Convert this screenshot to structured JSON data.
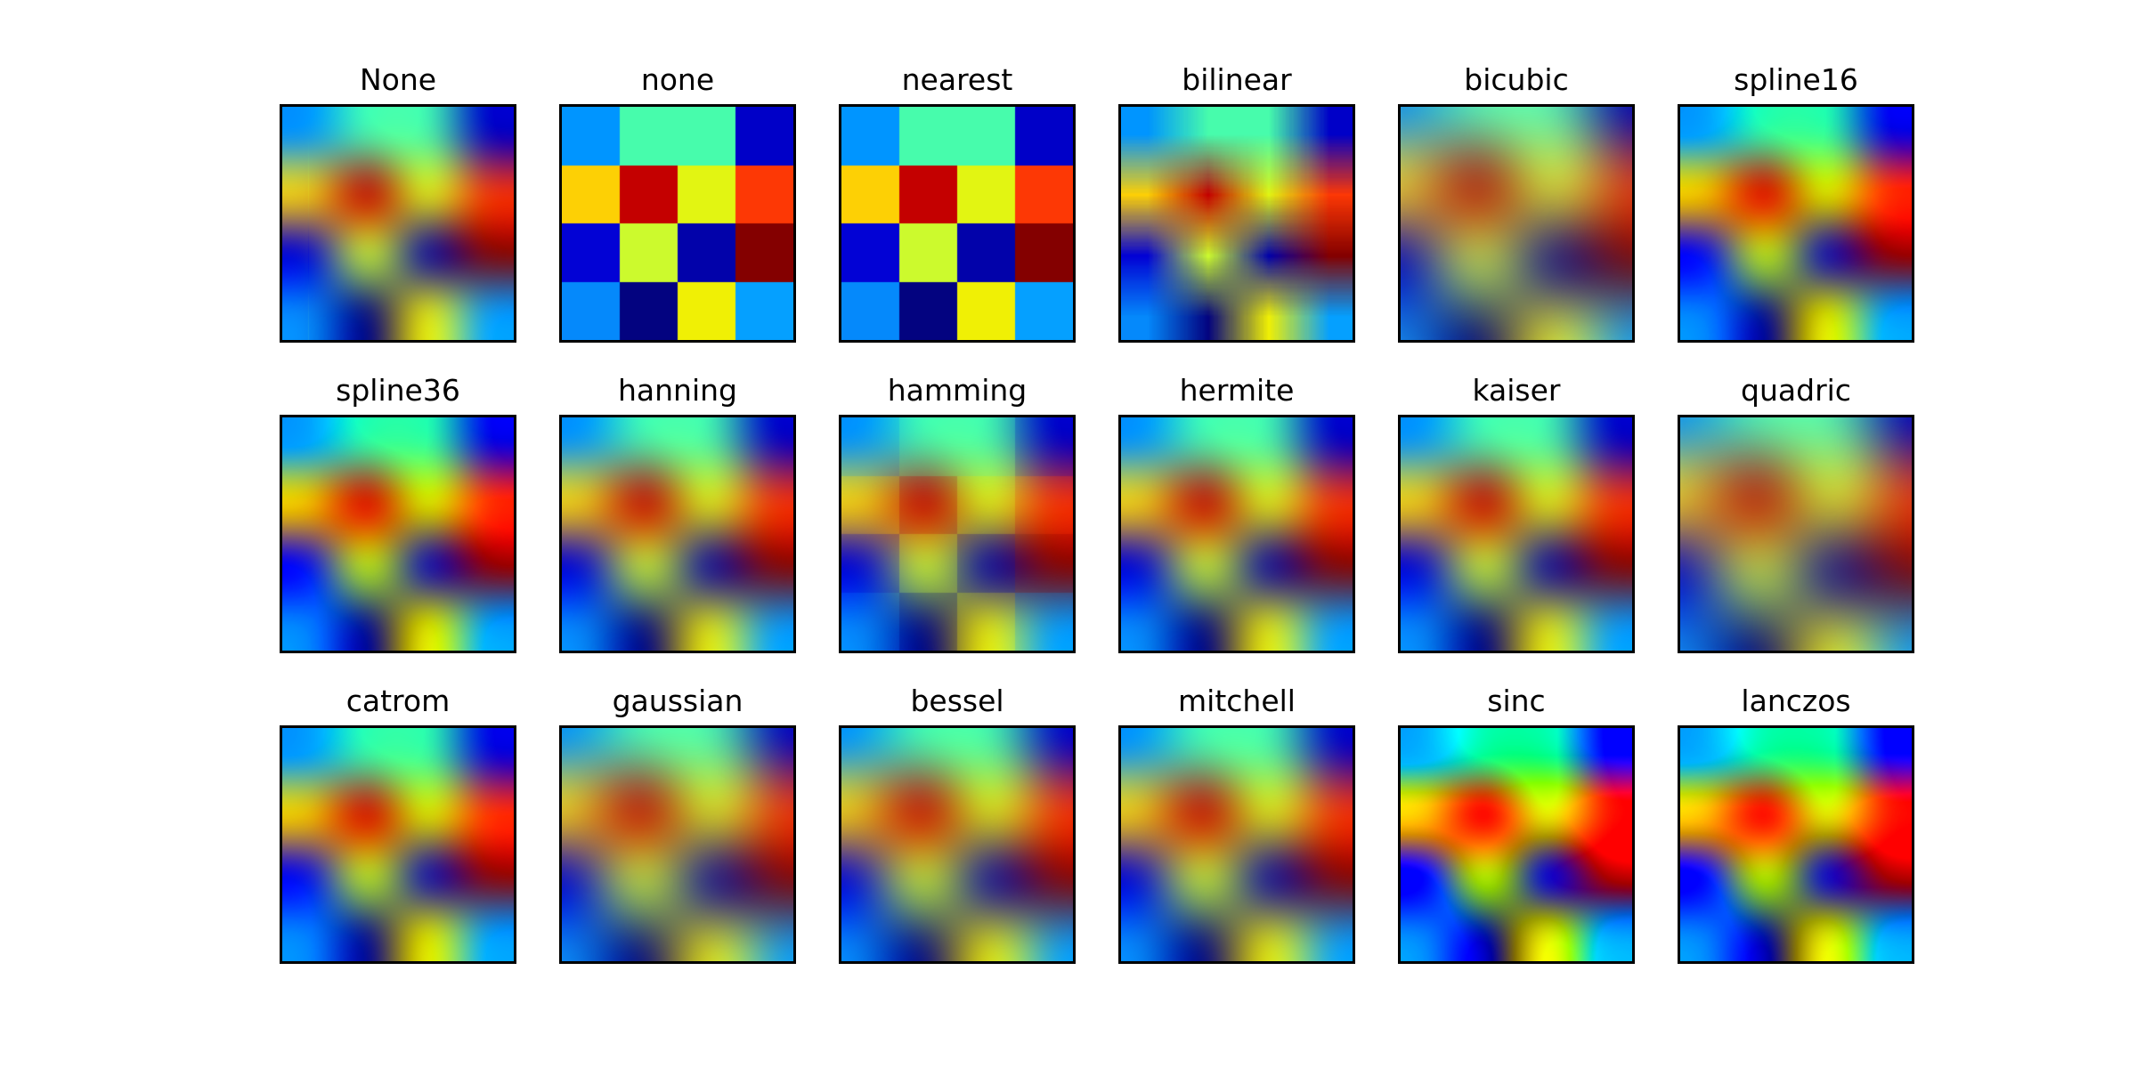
{
  "figure": {
    "background_color": "#ffffff",
    "frame_color": "#000000",
    "title_color": "#000000"
  },
  "chart_data": {
    "type": "heatmap",
    "title": "",
    "subtitle": "",
    "layout": {
      "grid_rows": 3,
      "grid_cols": 6,
      "axes_ticks": "none",
      "frame": "on",
      "background": "#ffffff"
    },
    "methods": [
      "None",
      "none",
      "nearest",
      "bilinear",
      "bicubic",
      "spline16",
      "spline36",
      "hanning",
      "hamming",
      "hermite",
      "kaiser",
      "quadric",
      "catrom",
      "gaussian",
      "bessel",
      "mitchell",
      "sinc",
      "lanczos"
    ],
    "source_grid": {
      "rows": 4,
      "cols": 4,
      "colormap": "jet",
      "cell_colors": [
        [
          "#0095FF",
          "#47FCAC",
          "#47FCAC",
          "#0000C8"
        ],
        [
          "#FDD005",
          "#C40000",
          "#E2F512",
          "#FD3805"
        ],
        [
          "#0202D5",
          "#CCFA2D",
          "#0202AA",
          "#840000"
        ],
        [
          "#0589FB",
          "#030380",
          "#F0F005",
          "#05A0FF"
        ]
      ]
    }
  }
}
